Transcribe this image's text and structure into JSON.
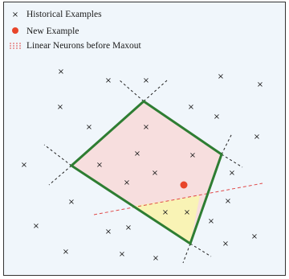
{
  "legend": {
    "historical_label": "Historical Examples",
    "new_example_label": "New Example",
    "linear_neurons_label": "Linear Neurons before Maxout"
  },
  "colors": {
    "background": "#f0f6fb",
    "polygon_fill": "#f7dede",
    "polygon_stroke": "#2e7d32",
    "yellow_region": "#f9f3b5",
    "new_example": "#e8452a",
    "red_dashed_line": "#e04a4a",
    "black_dashed_line": "#222222",
    "marker": "#222222"
  },
  "marker_glyph": "×"
}
